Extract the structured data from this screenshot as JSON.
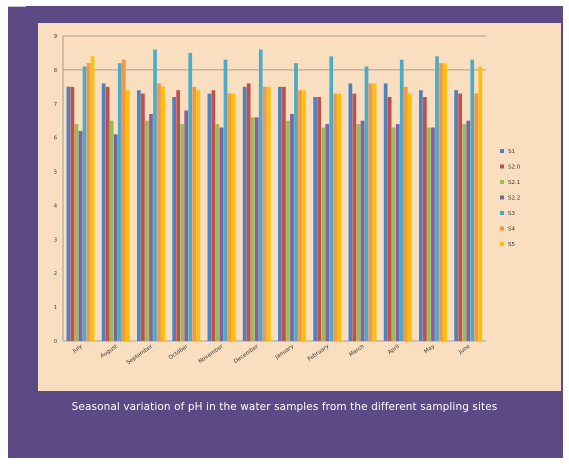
{
  "caption": "Seasonal variation of pH in the water samples from the different sampling sites",
  "chart_data": {
    "type": "bar",
    "title": "",
    "xlabel": "",
    "ylabel": "",
    "ylim": [
      0,
      9
    ],
    "yticks": [
      "0",
      "1",
      "2",
      "3",
      "4",
      "5",
      "6",
      "7",
      "8",
      "9"
    ],
    "grid": "horizontal lines at 8 and 9",
    "legend_position": "right",
    "categories": [
      "July",
      "August",
      "September",
      "October",
      "November",
      "December",
      "January",
      "February",
      "March",
      "April",
      "May",
      "June"
    ],
    "series": [
      {
        "name": "S1",
        "color": "#4f81bd",
        "values": [
          7.5,
          7.6,
          7.4,
          7.2,
          7.3,
          7.5,
          7.5,
          7.2,
          7.6,
          7.6,
          7.4,
          7.4
        ]
      },
      {
        "name": "S2.0",
        "color": "#c0504d",
        "values": [
          7.5,
          7.5,
          7.3,
          7.4,
          7.4,
          7.6,
          7.5,
          7.2,
          7.3,
          7.2,
          7.2,
          7.3
        ]
      },
      {
        "name": "S2.1",
        "color": "#9bbb59",
        "values": [
          6.4,
          6.5,
          6.5,
          6.4,
          6.4,
          6.6,
          6.5,
          6.3,
          6.4,
          6.3,
          6.3,
          6.4
        ]
      },
      {
        "name": "S2.2",
        "color": "#8064a2",
        "values": [
          6.2,
          6.1,
          6.7,
          6.8,
          6.3,
          6.6,
          6.7,
          6.4,
          6.5,
          6.4,
          6.3,
          6.5
        ]
      },
      {
        "name": "S3",
        "color": "#4bacc6",
        "values": [
          8.1,
          8.2,
          8.6,
          8.5,
          8.3,
          8.6,
          8.2,
          8.4,
          8.1,
          8.3,
          8.4,
          8.3
        ]
      },
      {
        "name": "S4",
        "color": "#f79646",
        "values": [
          8.2,
          8.3,
          7.6,
          7.5,
          7.3,
          7.5,
          7.4,
          7.3,
          7.6,
          7.5,
          8.2,
          7.3
        ]
      },
      {
        "name": "S5",
        "color": "#ffc000",
        "values": [
          8.4,
          7.4,
          7.5,
          7.4,
          7.3,
          7.5,
          7.4,
          7.3,
          7.6,
          7.3,
          8.2,
          8.1
        ]
      }
    ]
  }
}
